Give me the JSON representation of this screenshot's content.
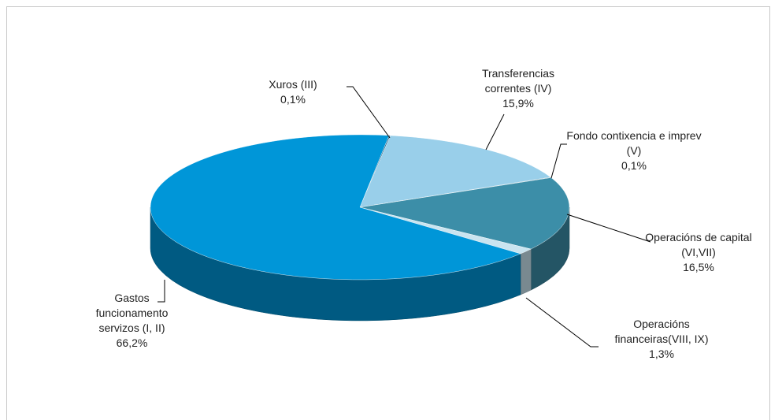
{
  "chart_data": {
    "type": "pie",
    "categories": [
      "Xuros (III)",
      "Transferencias correntes (IV)",
      "Fondo contixencia e imprev (V)",
      "Operacións de capital (VI,VII)",
      "Operacións financeiras(VIII, IX)",
      "Gastos funcionamento servizos (I, II)"
    ],
    "values": [
      0.1,
      15.9,
      0.1,
      16.5,
      1.3,
      66.2
    ],
    "value_labels": [
      "0,1%",
      "15,9%",
      "0,1%",
      "16,5%",
      "1,3%",
      "66,2%"
    ],
    "colors": [
      "#1f5f86",
      "#99cfea",
      "#2b7591",
      "#3c8ea8",
      "#c9e4f0",
      "#0096d8"
    ]
  }
}
